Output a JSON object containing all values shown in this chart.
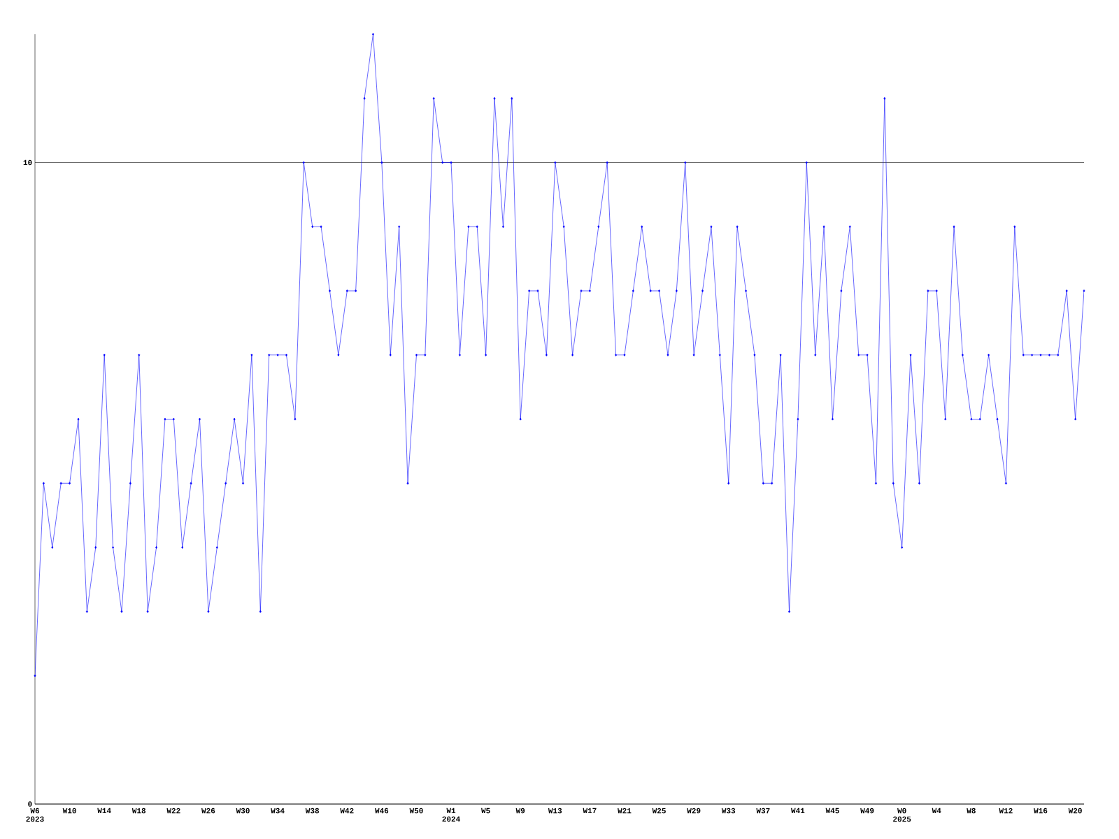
{
  "chart_data": {
    "type": "line",
    "x": [
      "2023-02-05",
      "2023-02-12",
      "2023-02-19",
      "2023-02-26",
      "2023-03-05",
      "2023-03-12",
      "2023-03-19",
      "2023-03-26",
      "2023-04-02",
      "2023-04-09",
      "2023-04-16",
      "2023-04-23",
      "2023-04-30",
      "2023-05-07",
      "2023-05-14",
      "2023-05-21",
      "2023-05-28",
      "2023-06-04",
      "2023-06-11",
      "2023-06-18",
      "2023-06-25",
      "2023-07-02",
      "2023-07-09",
      "2023-07-16",
      "2023-07-23",
      "2023-07-30",
      "2023-08-06",
      "2023-08-13",
      "2023-08-20",
      "2023-08-27",
      "2023-09-03",
      "2023-09-10",
      "2023-09-17",
      "2023-09-24",
      "2023-10-01",
      "2023-10-08",
      "2023-10-15",
      "2023-10-22",
      "2023-10-29",
      "2023-11-05",
      "2023-11-12",
      "2023-11-19",
      "2023-11-26",
      "2023-12-03",
      "2023-12-10",
      "2023-12-17",
      "2023-12-24",
      "2023-12-31",
      "2024-01-07",
      "2024-01-14",
      "2024-01-21",
      "2024-01-28",
      "2024-02-04",
      "2024-02-11",
      "2024-02-18",
      "2024-02-25",
      "2024-03-03",
      "2024-03-10",
      "2024-03-17",
      "2024-03-24",
      "2024-03-31",
      "2024-04-07",
      "2024-04-14",
      "2024-04-21",
      "2024-04-28",
      "2024-05-05",
      "2024-05-12",
      "2024-05-19",
      "2024-05-26",
      "2024-06-02",
      "2024-06-09",
      "2024-06-16",
      "2024-06-23",
      "2024-06-30",
      "2024-07-07",
      "2024-07-14",
      "2024-07-21",
      "2024-07-28",
      "2024-08-04",
      "2024-08-11",
      "2024-08-18",
      "2024-08-25",
      "2024-09-01",
      "2024-09-08",
      "2024-09-15",
      "2024-09-22",
      "2024-09-29",
      "2024-10-06",
      "2024-10-13",
      "2024-10-20",
      "2024-10-27",
      "2024-11-03",
      "2024-11-10",
      "2024-11-17",
      "2024-11-24",
      "2024-12-01",
      "2024-12-08",
      "2024-12-15",
      "2024-12-22",
      "2024-12-29",
      "2025-01-05",
      "2025-01-12",
      "2025-01-19",
      "2025-01-26",
      "2025-02-02",
      "2025-02-09",
      "2025-02-16",
      "2025-02-23",
      "2025-03-02",
      "2025-03-09",
      "2025-03-16",
      "2025-03-23",
      "2025-03-30",
      "2025-04-06",
      "2025-04-13",
      "2025-04-20",
      "2025-04-27",
      "2025-05-04",
      "2025-05-11",
      "2025-05-18",
      "2025-05-25",
      "2025-06-01"
    ],
    "series": [
      {
        "color": "#0000ff",
        "values": [
          2,
          5,
          4,
          5,
          5,
          6,
          3,
          4,
          7,
          4,
          3,
          5,
          7,
          3,
          4,
          6,
          6,
          4,
          5,
          6,
          3,
          4,
          5,
          6,
          5,
          7,
          3,
          7,
          7,
          7,
          6,
          10,
          9,
          9,
          8,
          7,
          8,
          8,
          11,
          12,
          10,
          7,
          9,
          5,
          7,
          7,
          11,
          10,
          10,
          7,
          9,
          9,
          7,
          11,
          9,
          11,
          6,
          8,
          8,
          7,
          10,
          9,
          7,
          8,
          8,
          9,
          10,
          7,
          7,
          8,
          9,
          8,
          8,
          7,
          8,
          10,
          7,
          8,
          9,
          7,
          5,
          9,
          8,
          7,
          5,
          5,
          7,
          3,
          6,
          10,
          7,
          9,
          6,
          8,
          9,
          7,
          7,
          5,
          11,
          5,
          4,
          7,
          5,
          8,
          8,
          6,
          9,
          7,
          6,
          6,
          7,
          6,
          5,
          9,
          7,
          7,
          7,
          7,
          7,
          8,
          6,
          8
        ]
      }
    ],
    "xlim": [
      "2023-02-05",
      "2025-06-01"
    ],
    "xticks": [
      {
        "value": "2023-02-05",
        "label": "W6"
      },
      {
        "value": "2023-03-05",
        "label": "W10"
      },
      {
        "value": "2023-04-02",
        "label": "W14"
      },
      {
        "value": "2023-04-30",
        "label": "W18"
      },
      {
        "value": "2023-05-28",
        "label": "W22"
      },
      {
        "value": "2023-06-25",
        "label": "W26"
      },
      {
        "value": "2023-07-23",
        "label": "W30"
      },
      {
        "value": "2023-08-20",
        "label": "W34"
      },
      {
        "value": "2023-09-17",
        "label": "W38"
      },
      {
        "value": "2023-10-15",
        "label": "W42"
      },
      {
        "value": "2023-11-12",
        "label": "W46"
      },
      {
        "value": "2023-12-10",
        "label": "W50"
      },
      {
        "value": "2024-01-07",
        "label": "W1"
      },
      {
        "value": "2024-02-04",
        "label": "W5"
      },
      {
        "value": "2024-03-03",
        "label": "W9"
      },
      {
        "value": "2024-03-31",
        "label": "W13"
      },
      {
        "value": "2024-04-28",
        "label": "W17"
      },
      {
        "value": "2024-05-26",
        "label": "W21"
      },
      {
        "value": "2024-06-23",
        "label": "W25"
      },
      {
        "value": "2024-07-21",
        "label": "W29"
      },
      {
        "value": "2024-08-18",
        "label": "W33"
      },
      {
        "value": "2024-09-15",
        "label": "W37"
      },
      {
        "value": "2024-10-13",
        "label": "W41"
      },
      {
        "value": "2024-11-10",
        "label": "W45"
      },
      {
        "value": "2024-12-08",
        "label": "W49"
      },
      {
        "value": "2025-01-05",
        "label": "W0"
      },
      {
        "value": "2025-02-02",
        "label": "W4"
      },
      {
        "value": "2025-03-02",
        "label": "W8"
      },
      {
        "value": "2025-03-30",
        "label": "W12"
      },
      {
        "value": "2025-04-27",
        "label": "W16"
      },
      {
        "value": "2025-05-25",
        "label": "W20"
      }
    ],
    "ylim": [
      0,
      12
    ],
    "yticks": [
      0,
      10
    ],
    "grid": "y",
    "marker": "diamond",
    "annotations": [
      "2023",
      "2024",
      "2025"
    ]
  }
}
